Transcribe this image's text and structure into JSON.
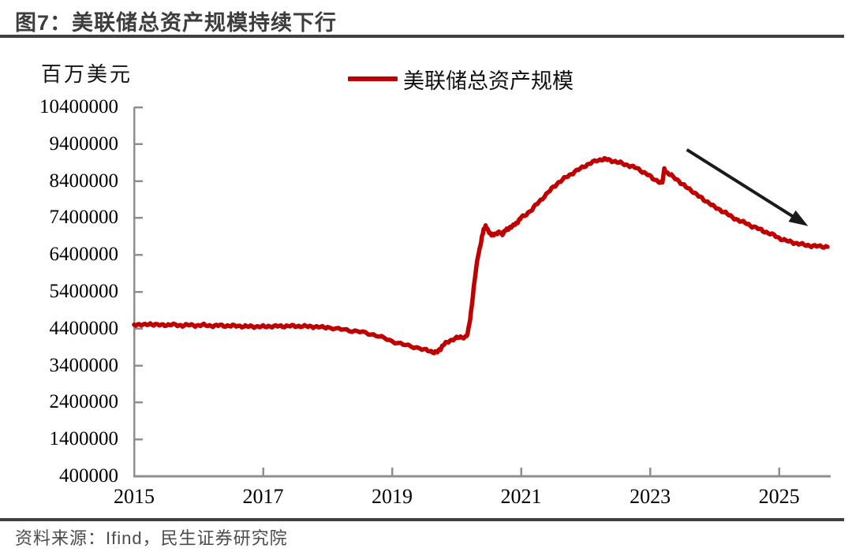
{
  "header": {
    "title": "图7：美联储总资产规模持续下行"
  },
  "footer": {
    "source": "资料来源：Ifind，民生证券研究院"
  },
  "colors": {
    "series_red": "#c00000",
    "axis_gray": "#8f8f8f",
    "rule_dark": "#404040",
    "arrow_black": "#1a1a1a"
  },
  "chart_data": {
    "type": "line",
    "title": "图7：美联储总资产规模持续下行",
    "unit_label": "百万美元",
    "legend": [
      {
        "name": "美联储总资产规模",
        "color": "#c00000"
      }
    ],
    "grid": false,
    "legend_position": "top-center",
    "x_ticks": [
      2015,
      2017,
      2019,
      2021,
      2023,
      2025
    ],
    "y_ticks": [
      400000,
      1400000,
      2400000,
      3400000,
      4400000,
      5400000,
      6400000,
      7400000,
      8400000,
      9400000,
      10400000
    ],
    "x_range": [
      2015,
      2025.8
    ],
    "y_range": [
      400000,
      10400000
    ],
    "series": [
      {
        "name": "美联储总资产规模",
        "color": "#c00000",
        "points": [
          [
            2015.0,
            4510000
          ],
          [
            2015.08,
            4520000
          ],
          [
            2015.17,
            4498000
          ],
          [
            2015.25,
            4526000
          ],
          [
            2015.33,
            4512000
          ],
          [
            2015.42,
            4492000
          ],
          [
            2015.5,
            4502000
          ],
          [
            2015.58,
            4513000
          ],
          [
            2015.67,
            4491000
          ],
          [
            2015.75,
            4488000
          ],
          [
            2015.83,
            4501000
          ],
          [
            2015.92,
            4491000
          ],
          [
            2016.0,
            4487000
          ],
          [
            2016.08,
            4497000
          ],
          [
            2016.17,
            4482000
          ],
          [
            2016.25,
            4476000
          ],
          [
            2016.33,
            4491000
          ],
          [
            2016.42,
            4479000
          ],
          [
            2016.5,
            4472000
          ],
          [
            2016.58,
            4481000
          ],
          [
            2016.67,
            4466000
          ],
          [
            2016.75,
            4454000
          ],
          [
            2016.83,
            4466000
          ],
          [
            2016.92,
            4452000
          ],
          [
            2017.0,
            4457000
          ],
          [
            2017.08,
            4466000
          ],
          [
            2017.17,
            4461000
          ],
          [
            2017.25,
            4471000
          ],
          [
            2017.33,
            4466000
          ],
          [
            2017.42,
            4473000
          ],
          [
            2017.5,
            4471000
          ],
          [
            2017.58,
            4467000
          ],
          [
            2017.67,
            4460000
          ],
          [
            2017.75,
            4461000
          ],
          [
            2017.83,
            4449000
          ],
          [
            2017.92,
            4437000
          ],
          [
            2018.0,
            4440000
          ],
          [
            2018.13,
            4393000
          ],
          [
            2018.25,
            4381000
          ],
          [
            2018.38,
            4341000
          ],
          [
            2018.5,
            4316000
          ],
          [
            2018.63,
            4271000
          ],
          [
            2018.75,
            4219000
          ],
          [
            2018.88,
            4141000
          ],
          [
            2019.0,
            4059000
          ],
          [
            2019.13,
            3991000
          ],
          [
            2019.25,
            3937000
          ],
          [
            2019.38,
            3891000
          ],
          [
            2019.5,
            3831000
          ],
          [
            2019.58,
            3793000
          ],
          [
            2019.65,
            3763000
          ],
          [
            2019.7,
            3769000
          ],
          [
            2019.75,
            3852000
          ],
          [
            2019.79,
            3961000
          ],
          [
            2019.85,
            4023000
          ],
          [
            2019.92,
            4096000
          ],
          [
            2020.0,
            4151000
          ],
          [
            2020.06,
            4161000
          ],
          [
            2020.13,
            4176000
          ],
          [
            2020.17,
            4242000
          ],
          [
            2020.21,
            4670000
          ],
          [
            2020.25,
            5254000
          ],
          [
            2020.29,
            5852000
          ],
          [
            2020.33,
            6373000
          ],
          [
            2020.37,
            6656000
          ],
          [
            2020.4,
            6934000
          ],
          [
            2020.42,
            7097000
          ],
          [
            2020.45,
            7165000
          ],
          [
            2020.48,
            7084000
          ],
          [
            2020.52,
            6994000
          ],
          [
            2020.55,
            6921000
          ],
          [
            2020.58,
            6956000
          ],
          [
            2020.63,
            6987000
          ],
          [
            2020.67,
            7011000
          ],
          [
            2020.71,
            6966000
          ],
          [
            2020.75,
            7056000
          ],
          [
            2020.79,
            7092000
          ],
          [
            2020.83,
            7152000
          ],
          [
            2020.88,
            7186000
          ],
          [
            2020.92,
            7246000
          ],
          [
            2020.96,
            7322000
          ],
          [
            2021.0,
            7405000
          ],
          [
            2021.08,
            7500000
          ],
          [
            2021.17,
            7630000
          ],
          [
            2021.25,
            7790000
          ],
          [
            2021.33,
            7930000
          ],
          [
            2021.42,
            8090000
          ],
          [
            2021.5,
            8240000
          ],
          [
            2021.58,
            8360000
          ],
          [
            2021.67,
            8470000
          ],
          [
            2021.75,
            8560000
          ],
          [
            2021.83,
            8650000
          ],
          [
            2021.92,
            8740000
          ],
          [
            2022.0,
            8820000
          ],
          [
            2022.08,
            8890000
          ],
          [
            2022.17,
            8950000
          ],
          [
            2022.25,
            8985000
          ],
          [
            2022.31,
            8995000
          ],
          [
            2022.38,
            8960000
          ],
          [
            2022.46,
            8930000
          ],
          [
            2022.54,
            8890000
          ],
          [
            2022.63,
            8840000
          ],
          [
            2022.71,
            8800000
          ],
          [
            2022.79,
            8750000
          ],
          [
            2022.88,
            8660000
          ],
          [
            2022.96,
            8580000
          ],
          [
            2023.04,
            8471000
          ],
          [
            2023.13,
            8391000
          ],
          [
            2023.19,
            8343000
          ],
          [
            2023.22,
            8734000
          ],
          [
            2023.27,
            8611000
          ],
          [
            2023.33,
            8546000
          ],
          [
            2023.42,
            8441000
          ],
          [
            2023.5,
            8309000
          ],
          [
            2023.58,
            8211000
          ],
          [
            2023.67,
            8111000
          ],
          [
            2023.75,
            7996000
          ],
          [
            2023.83,
            7896000
          ],
          [
            2023.92,
            7806000
          ],
          [
            2024.0,
            7691000
          ],
          [
            2024.08,
            7621000
          ],
          [
            2024.17,
            7546000
          ],
          [
            2024.25,
            7441000
          ],
          [
            2024.33,
            7371000
          ],
          [
            2024.42,
            7301000
          ],
          [
            2024.5,
            7246000
          ],
          [
            2024.58,
            7176000
          ],
          [
            2024.67,
            7116000
          ],
          [
            2024.75,
            7051000
          ],
          [
            2024.83,
            6996000
          ],
          [
            2024.92,
            6931000
          ],
          [
            2025.0,
            6856000
          ],
          [
            2025.08,
            6801000
          ],
          [
            2025.17,
            6756000
          ],
          [
            2025.25,
            6721000
          ],
          [
            2025.33,
            6691000
          ],
          [
            2025.42,
            6663000
          ],
          [
            2025.5,
            6646000
          ],
          [
            2025.58,
            6636000
          ],
          [
            2025.67,
            6626000
          ],
          [
            2025.75,
            6619000
          ]
        ]
      }
    ],
    "annotations": [
      {
        "type": "arrow",
        "from": [
          2023.57,
          9250000
        ],
        "to": [
          2025.45,
          7180000
        ],
        "color": "#1a1a1a"
      }
    ]
  }
}
